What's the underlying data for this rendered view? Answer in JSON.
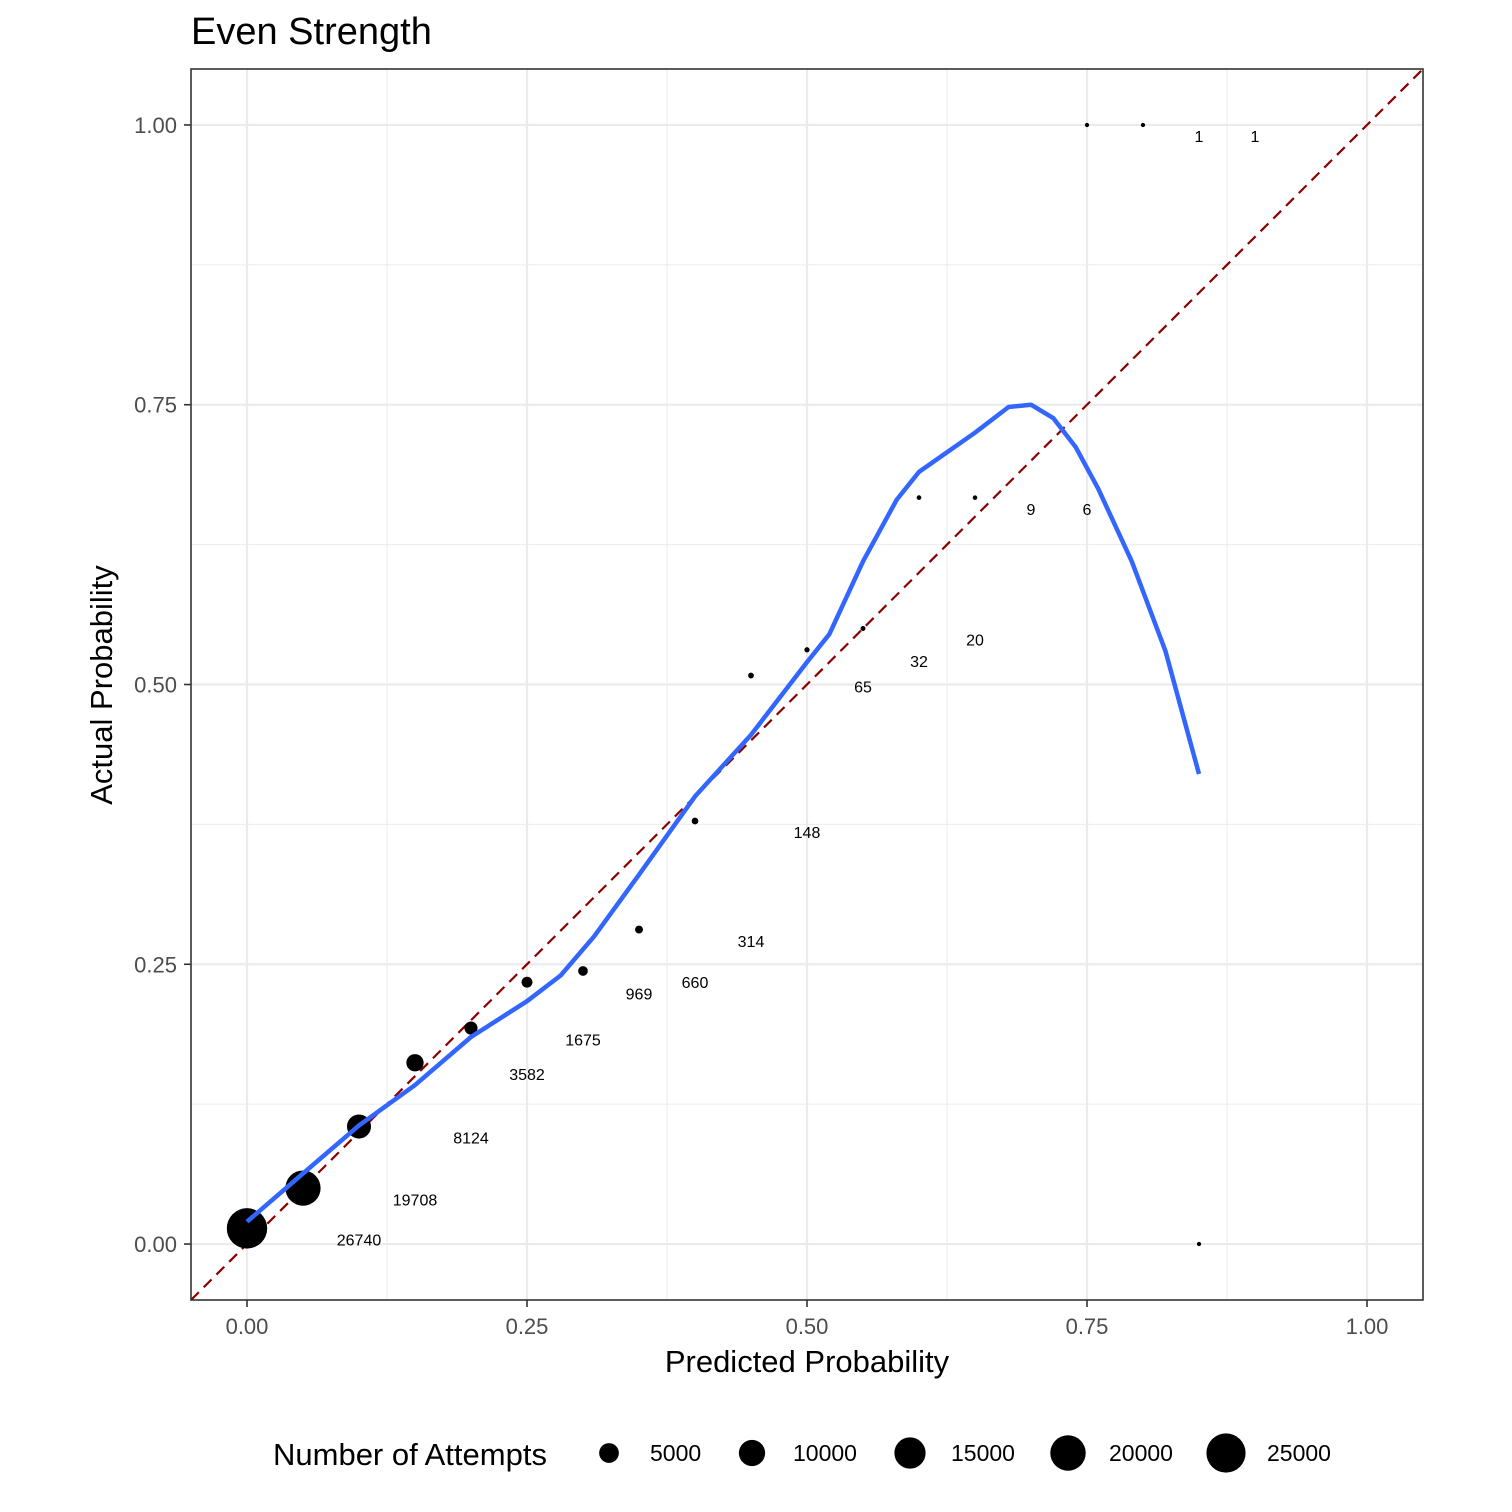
{
  "chart_data": {
    "type": "scatter",
    "title": "Even Strength",
    "xlabel": "Predicted Probability",
    "ylabel": "Actual Probability",
    "xlim": [
      -0.05,
      1.05
    ],
    "ylim": [
      -0.05,
      1.05
    ],
    "x_ticks": [
      0,
      0.25,
      0.5,
      0.75,
      1
    ],
    "x_tick_labels": [
      "0.00",
      "0.25",
      "0.50",
      "0.75",
      "1.00"
    ],
    "y_ticks": [
      0,
      0.25,
      0.5,
      0.75,
      1
    ],
    "y_tick_labels": [
      "0.00",
      "0.25",
      "0.50",
      "0.75",
      "1.00"
    ],
    "grid": true,
    "points": [
      {
        "x": 0.0,
        "y": 0.014,
        "n": 26740,
        "label": "26740"
      },
      {
        "x": 0.05,
        "y": 0.05,
        "n": 19708,
        "label": "19708"
      },
      {
        "x": 0.1,
        "y": 0.105,
        "n": 8124,
        "label": "8124"
      },
      {
        "x": 0.15,
        "y": 0.162,
        "n": 3582,
        "label": "3582"
      },
      {
        "x": 0.2,
        "y": 0.193,
        "n": 1675,
        "label": "1675"
      },
      {
        "x": 0.25,
        "y": 0.234,
        "n": 969,
        "label": "969"
      },
      {
        "x": 0.3,
        "y": 0.244,
        "n": 660,
        "label": "660"
      },
      {
        "x": 0.35,
        "y": 0.281,
        "n": 314,
        "label": "314"
      },
      {
        "x": 0.4,
        "y": 0.378,
        "n": 148,
        "label": "148"
      },
      {
        "x": 0.45,
        "y": 0.508,
        "n": 65,
        "label": "65"
      },
      {
        "x": 0.5,
        "y": 0.531,
        "n": 32,
        "label": "32"
      },
      {
        "x": 0.55,
        "y": 0.55,
        "n": 20,
        "label": "20"
      },
      {
        "x": 0.6,
        "y": 0.667,
        "n": 9,
        "label": "9"
      },
      {
        "x": 0.65,
        "y": 0.667,
        "n": 6,
        "label": "6"
      },
      {
        "x": 0.75,
        "y": 1.0,
        "n": 1,
        "label": "1"
      },
      {
        "x": 0.8,
        "y": 1.0,
        "n": 1,
        "label": "1"
      },
      {
        "x": 0.85,
        "y": 0.0,
        "n": 1,
        "label": ""
      }
    ],
    "smooth": [
      [
        0.0,
        0.02
      ],
      [
        0.05,
        0.063
      ],
      [
        0.1,
        0.106
      ],
      [
        0.15,
        0.142
      ],
      [
        0.2,
        0.185
      ],
      [
        0.25,
        0.217
      ],
      [
        0.28,
        0.24
      ],
      [
        0.31,
        0.275
      ],
      [
        0.35,
        0.33
      ],
      [
        0.4,
        0.4
      ],
      [
        0.45,
        0.455
      ],
      [
        0.5,
        0.52
      ],
      [
        0.52,
        0.545
      ],
      [
        0.55,
        0.61
      ],
      [
        0.58,
        0.665
      ],
      [
        0.6,
        0.69
      ],
      [
        0.65,
        0.725
      ],
      [
        0.68,
        0.748
      ],
      [
        0.7,
        0.75
      ],
      [
        0.72,
        0.738
      ],
      [
        0.74,
        0.712
      ],
      [
        0.76,
        0.675
      ],
      [
        0.79,
        0.61
      ],
      [
        0.82,
        0.53
      ],
      [
        0.85,
        0.42
      ]
    ],
    "reference_line": {
      "slope": 1,
      "intercept": 0
    },
    "legend": {
      "title": "Number of Attempts",
      "position": "bottom",
      "entries": [
        {
          "n": 5000,
          "label": "5000"
        },
        {
          "n": 10000,
          "label": "10000"
        },
        {
          "n": 15000,
          "label": "15000"
        },
        {
          "n": 20000,
          "label": "20000"
        },
        {
          "n": 25000,
          "label": "25000"
        }
      ]
    },
    "colors": {
      "points": "#000000",
      "smooth": "#3366FF",
      "reference": "#8B0000",
      "grid": "#EBEBEB",
      "panel_border": "#333333",
      "tick_text": "#4D4D4D"
    }
  }
}
